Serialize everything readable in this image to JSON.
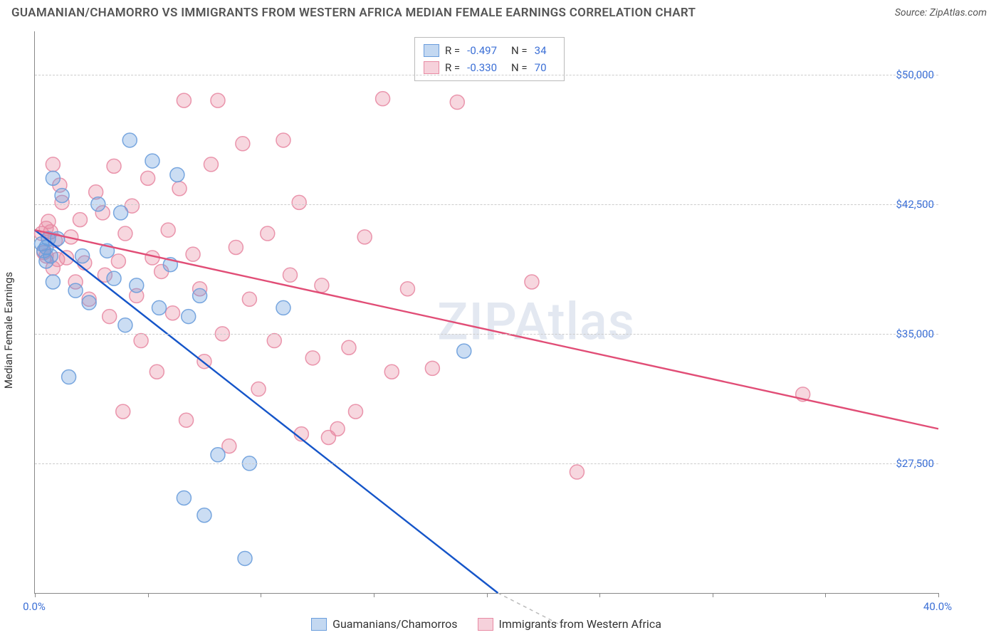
{
  "title": "GUAMANIAN/CHAMORRO VS IMMIGRANTS FROM WESTERN AFRICA MEDIAN FEMALE EARNINGS CORRELATION CHART",
  "source_label": "Source: ZipAtlas.com",
  "y_axis_label": "Median Female Earnings",
  "watermark": "ZIPAtlas",
  "chart": {
    "type": "scatter",
    "xlim": [
      0,
      40
    ],
    "ylim": [
      20000,
      52500
    ],
    "y_ticks": [
      27500,
      35000,
      42500,
      50000
    ],
    "y_tick_labels": [
      "$27,500",
      "$35,000",
      "$42,500",
      "$50,000"
    ],
    "x_ticks": [
      0,
      5,
      10,
      15,
      20,
      25,
      30,
      35,
      40
    ],
    "x_min_label": "0.0%",
    "x_max_label": "40.0%",
    "background_color": "#ffffff",
    "grid_color": "#cccccc",
    "marker_radius": 10,
    "marker_fill_opacity": 0.35,
    "marker_stroke_opacity": 0.9,
    "line_width": 2.4,
    "series": [
      {
        "id": "blue",
        "label": "Guamanians/Chamorros",
        "color": "#6a9ddc",
        "line_color": "#1555c9",
        "R": "-0.497",
        "N": "34",
        "regression": {
          "x1": 0,
          "y1": 41000,
          "x2": 20.5,
          "y2": 20000
        },
        "points": [
          [
            0.3,
            40200
          ],
          [
            0.4,
            39800
          ],
          [
            0.5,
            40000
          ],
          [
            0.5,
            39200
          ],
          [
            0.6,
            40500
          ],
          [
            0.7,
            39500
          ],
          [
            0.8,
            44000
          ],
          [
            0.8,
            38000
          ],
          [
            1.0,
            40500
          ],
          [
            1.2,
            43000
          ],
          [
            1.5,
            32500
          ],
          [
            1.8,
            37500
          ],
          [
            2.1,
            39500
          ],
          [
            2.4,
            36800
          ],
          [
            2.8,
            42500
          ],
          [
            3.2,
            39800
          ],
          [
            3.5,
            38200
          ],
          [
            3.8,
            42000
          ],
          [
            4.0,
            35500
          ],
          [
            4.2,
            46200
          ],
          [
            4.5,
            37800
          ],
          [
            5.2,
            45000
          ],
          [
            5.5,
            36500
          ],
          [
            6.0,
            39000
          ],
          [
            6.3,
            44200
          ],
          [
            6.6,
            25500
          ],
          [
            6.8,
            36000
          ],
          [
            7.3,
            37200
          ],
          [
            7.5,
            24500
          ],
          [
            8.1,
            28000
          ],
          [
            9.3,
            22000
          ],
          [
            9.5,
            27500
          ],
          [
            11.0,
            36500
          ],
          [
            19.0,
            34000
          ]
        ]
      },
      {
        "id": "pink",
        "label": "Immigrants from Western Africa",
        "color": "#e88ba4",
        "line_color": "#e14d76",
        "R": "-0.330",
        "N": "70",
        "regression": {
          "x1": 0,
          "y1": 41000,
          "x2": 40,
          "y2": 29500
        },
        "points": [
          [
            0.3,
            40800
          ],
          [
            0.4,
            39700
          ],
          [
            0.5,
            41100
          ],
          [
            0.5,
            39500
          ],
          [
            0.6,
            41500
          ],
          [
            0.7,
            40900
          ],
          [
            0.8,
            44800
          ],
          [
            0.8,
            38800
          ],
          [
            0.9,
            40400
          ],
          [
            1.0,
            39300
          ],
          [
            1.1,
            43600
          ],
          [
            1.2,
            42600
          ],
          [
            1.4,
            39400
          ],
          [
            1.6,
            40600
          ],
          [
            1.8,
            38000
          ],
          [
            2.0,
            41600
          ],
          [
            2.2,
            39100
          ],
          [
            2.4,
            37000
          ],
          [
            2.7,
            43200
          ],
          [
            3.0,
            42000
          ],
          [
            3.1,
            38400
          ],
          [
            3.3,
            36000
          ],
          [
            3.5,
            44700
          ],
          [
            3.7,
            39200
          ],
          [
            3.9,
            30500
          ],
          [
            4.0,
            40800
          ],
          [
            4.3,
            42400
          ],
          [
            4.5,
            37200
          ],
          [
            4.7,
            34600
          ],
          [
            5.0,
            44000
          ],
          [
            5.2,
            39400
          ],
          [
            5.4,
            32800
          ],
          [
            5.6,
            38600
          ],
          [
            5.9,
            41000
          ],
          [
            6.1,
            36200
          ],
          [
            6.4,
            43400
          ],
          [
            6.6,
            48500
          ],
          [
            6.7,
            30000
          ],
          [
            7.0,
            39600
          ],
          [
            7.3,
            37600
          ],
          [
            7.5,
            33400
          ],
          [
            7.8,
            44800
          ],
          [
            8.1,
            48500
          ],
          [
            8.3,
            35000
          ],
          [
            8.6,
            28500
          ],
          [
            8.9,
            40000
          ],
          [
            9.2,
            46000
          ],
          [
            9.5,
            37000
          ],
          [
            9.9,
            31800
          ],
          [
            10.3,
            40800
          ],
          [
            10.6,
            34600
          ],
          [
            11.0,
            46200
          ],
          [
            11.3,
            38400
          ],
          [
            11.7,
            42600
          ],
          [
            12.3,
            33600
          ],
          [
            12.7,
            37800
          ],
          [
            13.4,
            29500
          ],
          [
            13.9,
            34200
          ],
          [
            14.6,
            40600
          ],
          [
            15.4,
            48600
          ],
          [
            16.5,
            37600
          ],
          [
            17.6,
            33000
          ],
          [
            18.7,
            48400
          ],
          [
            15.8,
            32800
          ],
          [
            13.0,
            29000
          ],
          [
            22.0,
            38000
          ],
          [
            24.0,
            27000
          ],
          [
            34.0,
            31500
          ],
          [
            11.8,
            29200
          ],
          [
            14.2,
            30500
          ]
        ]
      }
    ]
  },
  "legend_top": {
    "r_label": "R =",
    "n_label": "N ="
  }
}
